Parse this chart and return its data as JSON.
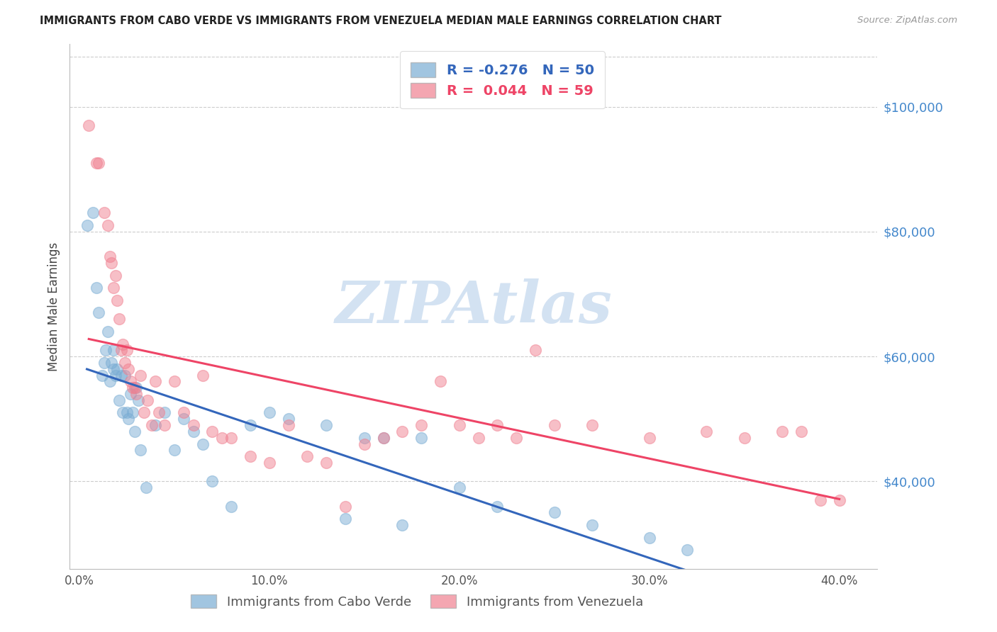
{
  "title": "IMMIGRANTS FROM CABO VERDE VS IMMIGRANTS FROM VENEZUELA MEDIAN MALE EARNINGS CORRELATION CHART",
  "source": "Source: ZipAtlas.com",
  "ylabel": "Median Male Earnings",
  "xlabel_ticks": [
    "0.0%",
    "10.0%",
    "20.0%",
    "30.0%",
    "40.0%"
  ],
  "xlabel_vals": [
    0.0,
    0.1,
    0.2,
    0.3,
    0.4
  ],
  "ytick_vals": [
    40000,
    60000,
    80000,
    100000
  ],
  "ytick_labels": [
    "$40,000",
    "$60,000",
    "$80,000",
    "$100,000"
  ],
  "xlim": [
    -0.005,
    0.42
  ],
  "ylim": [
    26000,
    110000
  ],
  "cabo_verde_R": -0.276,
  "cabo_verde_N": 50,
  "venezuela_R": 0.044,
  "venezuela_N": 59,
  "cabo_color": "#7AADD4",
  "venezuela_color": "#F08090",
  "cabo_line_color": "#3366BB",
  "venezuela_line_color": "#EE4466",
  "watermark": "ZIPAtlas",
  "watermark_color": "#CCDDF0",
  "cabo_x": [
    0.004,
    0.007,
    0.009,
    0.01,
    0.012,
    0.013,
    0.014,
    0.015,
    0.016,
    0.017,
    0.018,
    0.018,
    0.019,
    0.02,
    0.021,
    0.022,
    0.023,
    0.024,
    0.025,
    0.026,
    0.027,
    0.028,
    0.029,
    0.03,
    0.031,
    0.032,
    0.035,
    0.04,
    0.045,
    0.05,
    0.055,
    0.06,
    0.065,
    0.07,
    0.08,
    0.09,
    0.1,
    0.11,
    0.13,
    0.14,
    0.15,
    0.16,
    0.17,
    0.18,
    0.2,
    0.22,
    0.25,
    0.27,
    0.3,
    0.32
  ],
  "cabo_y": [
    81000,
    83000,
    71000,
    67000,
    57000,
    59000,
    61000,
    64000,
    56000,
    59000,
    58000,
    61000,
    57000,
    58000,
    53000,
    57000,
    51000,
    57000,
    51000,
    50000,
    54000,
    51000,
    48000,
    55000,
    53000,
    45000,
    39000,
    49000,
    51000,
    45000,
    50000,
    48000,
    46000,
    40000,
    36000,
    49000,
    51000,
    50000,
    49000,
    34000,
    47000,
    47000,
    33000,
    47000,
    39000,
    36000,
    35000,
    33000,
    31000,
    29000
  ],
  "venezuela_x": [
    0.005,
    0.009,
    0.01,
    0.013,
    0.015,
    0.016,
    0.017,
    0.018,
    0.019,
    0.02,
    0.021,
    0.022,
    0.023,
    0.024,
    0.025,
    0.026,
    0.027,
    0.028,
    0.029,
    0.03,
    0.032,
    0.034,
    0.036,
    0.038,
    0.04,
    0.042,
    0.045,
    0.05,
    0.055,
    0.06,
    0.065,
    0.07,
    0.075,
    0.08,
    0.09,
    0.1,
    0.11,
    0.12,
    0.13,
    0.14,
    0.15,
    0.16,
    0.17,
    0.18,
    0.19,
    0.2,
    0.21,
    0.22,
    0.23,
    0.24,
    0.25,
    0.27,
    0.3,
    0.33,
    0.35,
    0.37,
    0.38,
    0.39,
    0.4
  ],
  "venezuela_y": [
    97000,
    91000,
    91000,
    83000,
    81000,
    76000,
    75000,
    71000,
    73000,
    69000,
    66000,
    61000,
    62000,
    59000,
    61000,
    58000,
    56000,
    55000,
    55000,
    54000,
    57000,
    51000,
    53000,
    49000,
    56000,
    51000,
    49000,
    56000,
    51000,
    49000,
    57000,
    48000,
    47000,
    47000,
    44000,
    43000,
    49000,
    44000,
    43000,
    36000,
    46000,
    47000,
    48000,
    49000,
    56000,
    49000,
    47000,
    49000,
    47000,
    61000,
    49000,
    49000,
    47000,
    48000,
    47000,
    48000,
    48000,
    37000,
    37000
  ]
}
